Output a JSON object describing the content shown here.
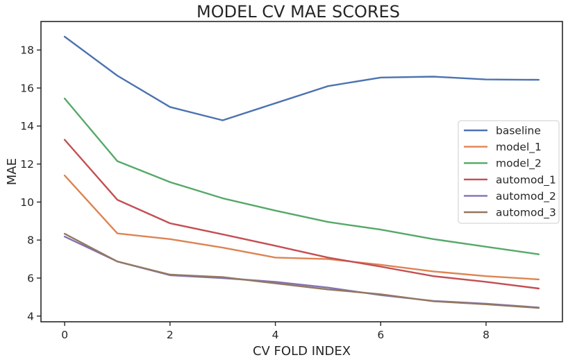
{
  "chart_data": {
    "type": "line",
    "title": "MODEL CV MAE SCORES",
    "xlabel": "CV FOLD INDEX",
    "ylabel": "MAE",
    "x": [
      0,
      1,
      2,
      3,
      4,
      5,
      6,
      7,
      8,
      9
    ],
    "xlim": [
      -0.45,
      9.45
    ],
    "ylim": [
      3.7,
      19.5
    ],
    "xticks": [
      0,
      2,
      4,
      6,
      8
    ],
    "yticks": [
      4,
      6,
      8,
      10,
      12,
      14,
      16,
      18
    ],
    "grid": false,
    "legend_position": "center-right",
    "series": [
      {
        "name": "baseline",
        "color": "#4c72b0",
        "values": [
          18.7,
          16.65,
          15.0,
          14.3,
          15.2,
          16.1,
          16.55,
          16.6,
          16.45,
          16.43
        ]
      },
      {
        "name": "model_1",
        "color": "#dd8452",
        "values": [
          11.4,
          8.35,
          8.05,
          7.6,
          7.08,
          7.0,
          6.7,
          6.35,
          6.1,
          5.93
        ]
      },
      {
        "name": "model_2",
        "color": "#55a868",
        "values": [
          15.45,
          12.15,
          11.05,
          10.2,
          9.55,
          8.95,
          8.55,
          8.05,
          7.65,
          7.25
        ]
      },
      {
        "name": "automod_1",
        "color": "#c44e52",
        "values": [
          13.28,
          10.12,
          8.88,
          8.3,
          7.7,
          7.08,
          6.6,
          6.1,
          5.8,
          5.45
        ]
      },
      {
        "name": "automod_2",
        "color": "#8172b3",
        "values": [
          8.18,
          6.87,
          6.15,
          6.0,
          5.8,
          5.5,
          5.1,
          4.8,
          4.65,
          4.45
        ]
      },
      {
        "name": "automod_3",
        "color": "#937860",
        "values": [
          8.33,
          6.87,
          6.18,
          6.05,
          5.72,
          5.4,
          5.15,
          4.78,
          4.62,
          4.43
        ]
      }
    ]
  }
}
